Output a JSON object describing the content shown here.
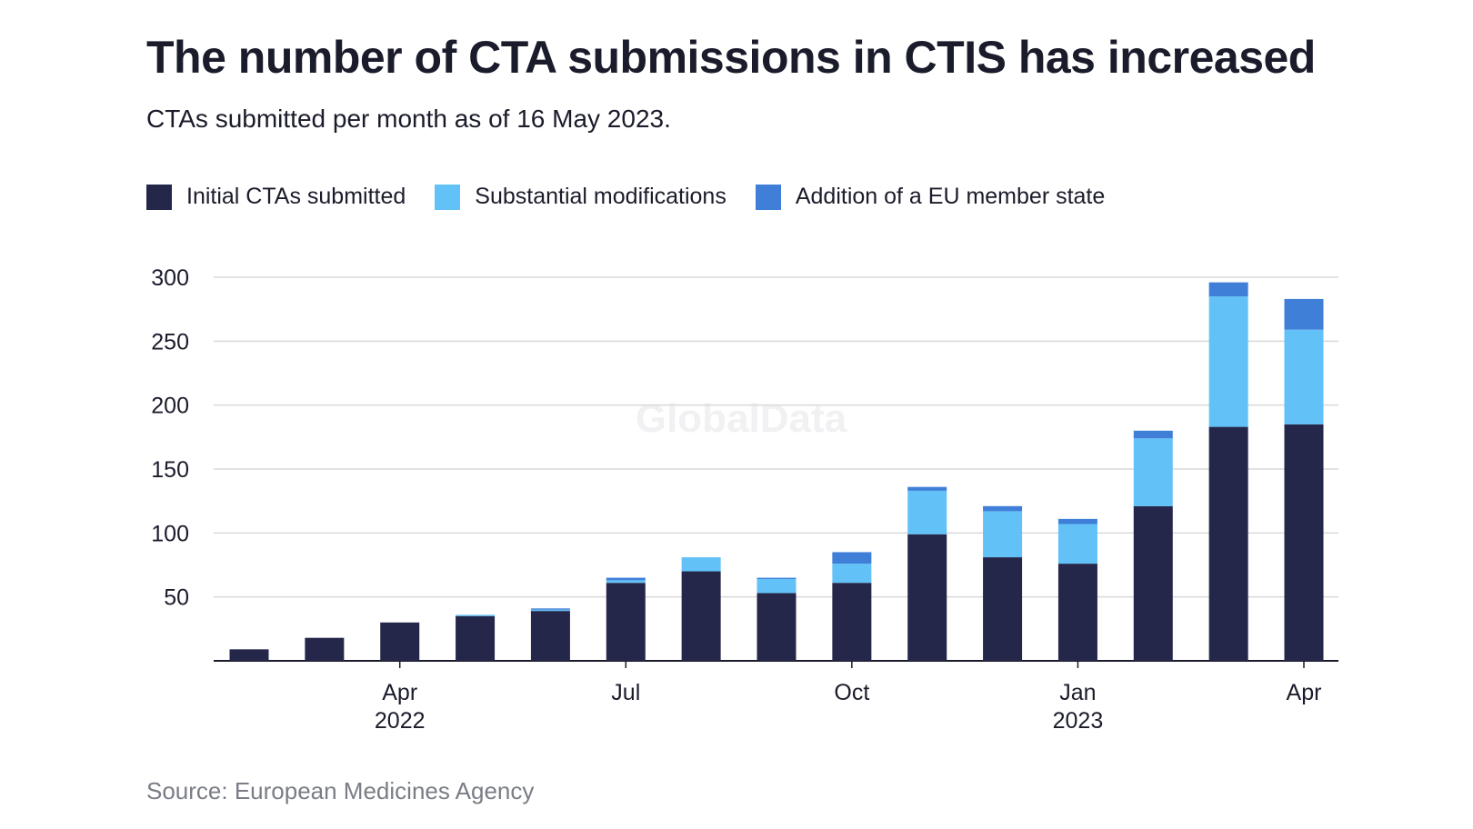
{
  "title": "The number of CTA submissions in CTIS has increased",
  "subtitle": "CTAs submitted per month as of 16 May 2023.",
  "source": "Source: European Medicines Agency",
  "watermark": "GlobalData",
  "colors": {
    "initial": "#25274a",
    "modifications": "#62c2f8",
    "addition": "#3f7fd8",
    "grid": "#d9d9d9",
    "axis": "#1b1c2b"
  },
  "legend": [
    {
      "label": "Initial CTAs submitted",
      "color": "#25274a"
    },
    {
      "label": "Substantial modifications",
      "color": "#62c2f8"
    },
    {
      "label": "Addition of a EU member state",
      "color": "#3f7fd8"
    }
  ],
  "chart_data": {
    "type": "bar",
    "stacked": true,
    "categories": [
      "Feb 2022",
      "Mar 2022",
      "Apr 2022",
      "May 2022",
      "Jun 2022",
      "Jul 2022",
      "Aug 2022",
      "Sep 2022",
      "Oct 2022",
      "Nov 2022",
      "Dec 2022",
      "Jan 2023",
      "Feb 2023",
      "Mar 2023",
      "Apr 2023"
    ],
    "series": [
      {
        "name": "Initial CTAs submitted",
        "values": [
          9,
          18,
          30,
          35,
          39,
          61,
          70,
          53,
          61,
          99,
          81,
          76,
          121,
          183,
          185
        ]
      },
      {
        "name": "Substantial modifications",
        "values": [
          0,
          0,
          0,
          1,
          1,
          2,
          11,
          11,
          15,
          34,
          36,
          31,
          53,
          102,
          74
        ]
      },
      {
        "name": "Addition of a EU member state",
        "values": [
          0,
          0,
          0,
          0,
          1,
          2,
          0,
          1,
          9,
          3,
          4,
          4,
          6,
          11,
          24
        ]
      }
    ],
    "yticks": [
      50,
      100,
      150,
      200,
      250,
      300
    ],
    "ylim": [
      0,
      300
    ],
    "xtick_labels": [
      {
        "index": 2,
        "line1": "Apr",
        "line2": "2022"
      },
      {
        "index": 5,
        "line1": "Jul",
        "line2": ""
      },
      {
        "index": 8,
        "line1": "Oct",
        "line2": ""
      },
      {
        "index": 11,
        "line1": "Jan",
        "line2": "2023"
      },
      {
        "index": 14,
        "line1": "Apr",
        "line2": ""
      }
    ],
    "grid": true,
    "legend_position": "top-left"
  }
}
